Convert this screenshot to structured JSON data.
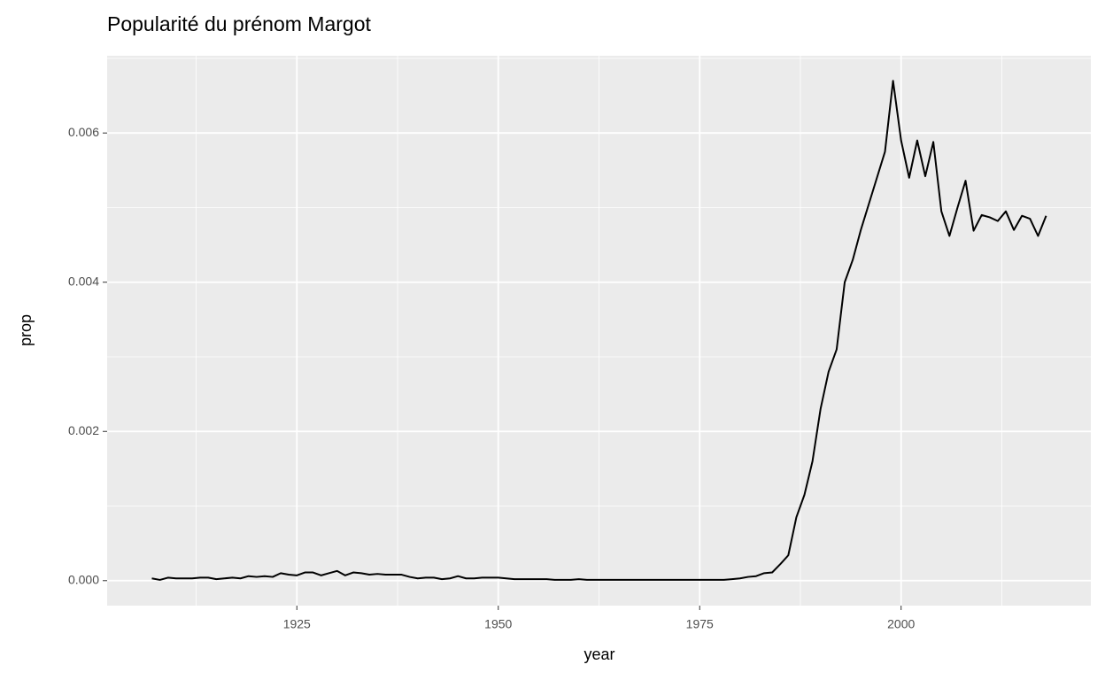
{
  "chart_data": {
    "type": "line",
    "title": "Popularité du prénom Margot",
    "x_label": "year",
    "y_label": "prop",
    "x": [
      1907,
      1908,
      1909,
      1910,
      1911,
      1912,
      1913,
      1914,
      1915,
      1916,
      1917,
      1918,
      1919,
      1920,
      1921,
      1922,
      1923,
      1924,
      1925,
      1926,
      1927,
      1928,
      1929,
      1930,
      1931,
      1932,
      1933,
      1934,
      1935,
      1936,
      1937,
      1938,
      1939,
      1940,
      1941,
      1942,
      1943,
      1944,
      1945,
      1946,
      1947,
      1948,
      1949,
      1950,
      1951,
      1952,
      1953,
      1954,
      1955,
      1956,
      1957,
      1958,
      1959,
      1960,
      1961,
      1962,
      1963,
      1964,
      1965,
      1966,
      1967,
      1968,
      1969,
      1970,
      1971,
      1972,
      1973,
      1974,
      1975,
      1976,
      1977,
      1978,
      1979,
      1980,
      1981,
      1982,
      1983,
      1984,
      1985,
      1986,
      1987,
      1988,
      1989,
      1990,
      1991,
      1992,
      1993,
      1994,
      1995,
      1996,
      1997,
      1998,
      1999,
      2000,
      2001,
      2002,
      2003,
      2004,
      2005,
      2006,
      2007,
      2008,
      2009,
      2010,
      2011,
      2012,
      2013,
      2014,
      2015,
      2016,
      2017,
      2018
    ],
    "values": [
      3e-05,
      1e-05,
      4e-05,
      3e-05,
      3e-05,
      3e-05,
      4e-05,
      4e-05,
      2e-05,
      3e-05,
      4e-05,
      3e-05,
      6e-05,
      5e-05,
      6e-05,
      5e-05,
      0.0001,
      8e-05,
      7e-05,
      0.00011,
      0.00011,
      7e-05,
      0.0001,
      0.00013,
      7e-05,
      0.00011,
      0.0001,
      8e-05,
      9e-05,
      8e-05,
      8e-05,
      8e-05,
      5e-05,
      3e-05,
      4e-05,
      4e-05,
      2e-05,
      3e-05,
      6e-05,
      3e-05,
      3e-05,
      4e-05,
      4e-05,
      4e-05,
      3e-05,
      2e-05,
      2e-05,
      2e-05,
      2e-05,
      2e-05,
      1e-05,
      1e-05,
      1e-05,
      2e-05,
      1e-05,
      1e-05,
      1e-05,
      1e-05,
      1e-05,
      1e-05,
      1e-05,
      1e-05,
      1e-05,
      1e-05,
      1e-05,
      1e-05,
      1e-05,
      1e-05,
      1e-05,
      1e-05,
      1e-05,
      1e-05,
      2e-05,
      3e-05,
      5e-05,
      6e-05,
      0.0001,
      0.00011,
      0.00022,
      0.00034,
      0.00085,
      0.00115,
      0.0016,
      0.0023,
      0.0028,
      0.0031,
      0.004,
      0.0043,
      0.0047,
      0.00505,
      0.0054,
      0.00575,
      0.0067,
      0.0059,
      0.0054,
      0.0059,
      0.00542,
      0.00588,
      0.00495,
      0.00462,
      0.005,
      0.00536,
      0.00469,
      0.0049,
      0.00487,
      0.00482,
      0.00495,
      0.0047,
      0.00489,
      0.00485,
      0.00462,
      0.00489
    ],
    "color": "#000000",
    "xlim": [
      1901.45,
      2023.55
    ],
    "xticks": [
      1925,
      1950,
      1975,
      2000
    ],
    "ylim": [
      -0.000335,
      0.007035
    ],
    "yticks": [
      {
        "value": 0,
        "label": "0.000"
      },
      0.002,
      0.004,
      0.006
    ],
    "grid": true
  }
}
